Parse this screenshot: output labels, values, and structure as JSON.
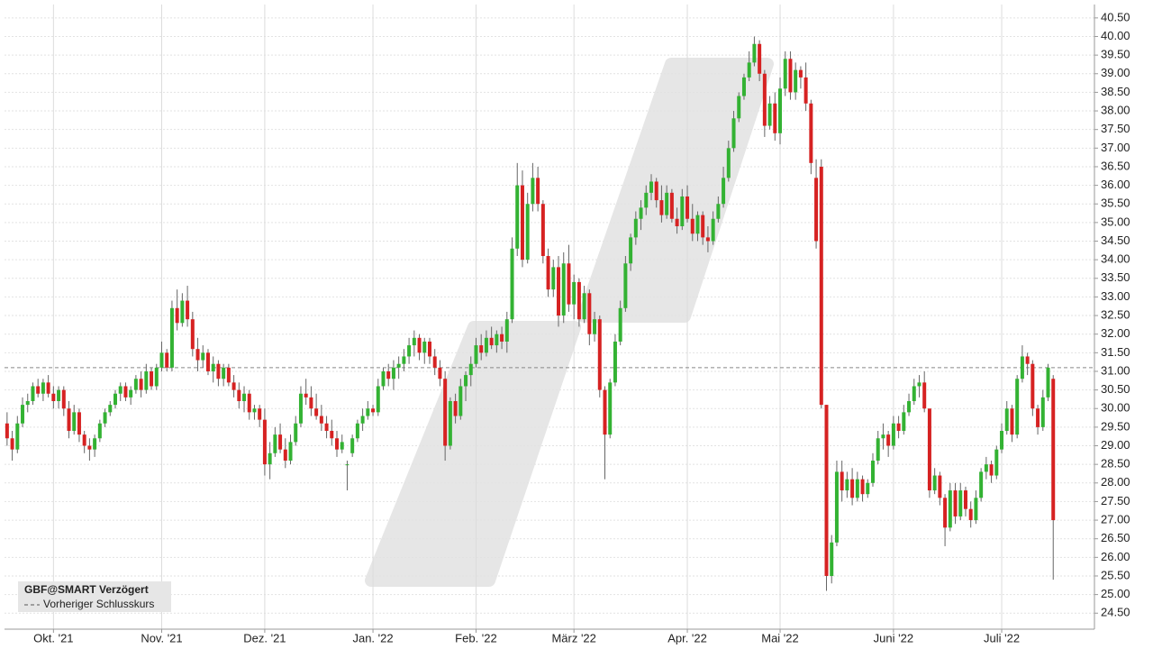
{
  "chart_data": {
    "type": "candlestick",
    "legend_title": "GBF@SMART Verzögert",
    "reference_line": {
      "name": "Vorheriger Schlusskurs",
      "value": 31.1,
      "color": "#888888"
    },
    "up_color": "#33b233",
    "down_color": "#d62222",
    "grid": true,
    "xlim": [
      -0.5,
      211
    ],
    "ylim": [
      24.07,
      40.86
    ],
    "xticks": [
      {
        "value": 9,
        "label": "Okt. '21"
      },
      {
        "value": 30,
        "label": "Nov. '21"
      },
      {
        "value": 50,
        "label": "Dez. '21"
      },
      {
        "value": 71,
        "label": "Jan. '22"
      },
      {
        "value": 91,
        "label": "Feb. '22"
      },
      {
        "value": 110,
        "label": "März '22"
      },
      {
        "value": 132,
        "label": "Apr. '22"
      },
      {
        "value": 150,
        "label": "Mai '22"
      },
      {
        "value": 172,
        "label": "Juni '22"
      },
      {
        "value": 193,
        "label": "Juli '22"
      }
    ],
    "yticks": [
      {
        "value": 24.5,
        "label": "24.50"
      },
      {
        "value": 25,
        "label": "25.00"
      },
      {
        "value": 25.5,
        "label": "25.50"
      },
      {
        "value": 26,
        "label": "26.00"
      },
      {
        "value": 26.5,
        "label": "26.50"
      },
      {
        "value": 27,
        "label": "27.00"
      },
      {
        "value": 27.5,
        "label": "27.50"
      },
      {
        "value": 28,
        "label": "28.00"
      },
      {
        "value": 28.5,
        "label": "28.50"
      },
      {
        "value": 29,
        "label": "29.00"
      },
      {
        "value": 29.5,
        "label": "29.50"
      },
      {
        "value": 30,
        "label": "30.00"
      },
      {
        "value": 30.5,
        "label": "30.50"
      },
      {
        "value": 31,
        "label": "31.00"
      },
      {
        "value": 31.5,
        "label": "31.50"
      },
      {
        "value": 32,
        "label": "32.00"
      },
      {
        "value": 32.5,
        "label": "32.50"
      },
      {
        "value": 33,
        "label": "33.00"
      },
      {
        "value": 33.5,
        "label": "33.50"
      },
      {
        "value": 34,
        "label": "34.00"
      },
      {
        "value": 34.5,
        "label": "34.50"
      },
      {
        "value": 35,
        "label": "35.00"
      },
      {
        "value": 35.5,
        "label": "35.50"
      },
      {
        "value": 36,
        "label": "36.00"
      },
      {
        "value": 36.5,
        "label": "36.50"
      },
      {
        "value": 37,
        "label": "37.00"
      },
      {
        "value": 37.5,
        "label": "37.50"
      },
      {
        "value": 38,
        "label": "38.00"
      },
      {
        "value": 38.5,
        "label": "38.50"
      },
      {
        "value": 39,
        "label": "39.00"
      },
      {
        "value": 39.5,
        "label": "39.50"
      },
      {
        "value": 40,
        "label": "40.00"
      },
      {
        "value": 40.5,
        "label": "40.50"
      }
    ],
    "candles": [
      [
        29.6,
        29.9,
        29.0,
        29.2
      ],
      [
        29.2,
        29.4,
        28.6,
        28.9
      ],
      [
        28.9,
        29.8,
        28.8,
        29.6
      ],
      [
        29.6,
        30.3,
        29.5,
        30.1
      ],
      [
        30.1,
        30.4,
        29.9,
        30.2
      ],
      [
        30.2,
        30.7,
        30.1,
        30.6
      ],
      [
        30.6,
        30.8,
        30.3,
        30.4
      ],
      [
        30.4,
        30.8,
        30.2,
        30.7
      ],
      [
        30.7,
        30.9,
        30.3,
        30.4
      ],
      [
        30.4,
        30.6,
        30.0,
        30.2
      ],
      [
        30.2,
        30.6,
        30.0,
        30.5
      ],
      [
        30.5,
        30.6,
        29.8,
        30.0
      ],
      [
        30.0,
        30.2,
        29.2,
        29.4
      ],
      [
        29.4,
        30.1,
        29.3,
        29.9
      ],
      [
        29.9,
        30.0,
        29.1,
        29.3
      ],
      [
        29.3,
        29.4,
        28.8,
        29.0
      ],
      [
        29.0,
        29.2,
        28.6,
        28.9
      ],
      [
        28.9,
        29.3,
        28.7,
        29.2
      ],
      [
        29.2,
        29.7,
        29.1,
        29.6
      ],
      [
        29.6,
        30.0,
        29.5,
        29.9
      ],
      [
        29.9,
        30.2,
        29.8,
        30.1
      ],
      [
        30.1,
        30.5,
        30.0,
        30.4
      ],
      [
        30.4,
        30.7,
        30.2,
        30.6
      ],
      [
        30.6,
        30.7,
        30.2,
        30.3
      ],
      [
        30.3,
        30.6,
        30.1,
        30.5
      ],
      [
        30.5,
        30.9,
        30.4,
        30.8
      ],
      [
        30.8,
        31.0,
        30.3,
        30.5
      ],
      [
        30.5,
        31.2,
        30.4,
        31.0
      ],
      [
        31.0,
        31.1,
        30.5,
        30.6
      ],
      [
        30.6,
        31.2,
        30.5,
        31.1
      ],
      [
        31.1,
        31.8,
        31.0,
        31.5
      ],
      [
        31.5,
        31.6,
        31.0,
        31.1
      ],
      [
        31.1,
        32.9,
        31.0,
        32.7
      ],
      [
        32.7,
        33.2,
        32.1,
        32.3
      ],
      [
        32.3,
        33.1,
        32.2,
        32.9
      ],
      [
        32.9,
        33.3,
        32.2,
        32.4
      ],
      [
        32.4,
        32.6,
        31.4,
        31.6
      ],
      [
        31.6,
        31.9,
        31.0,
        31.3
      ],
      [
        31.3,
        31.7,
        31.1,
        31.5
      ],
      [
        31.5,
        31.6,
        30.9,
        31.0
      ],
      [
        31.0,
        31.4,
        30.7,
        31.2
      ],
      [
        31.2,
        31.3,
        30.6,
        30.8
      ],
      [
        30.8,
        31.2,
        30.6,
        31.1
      ],
      [
        31.1,
        31.2,
        30.6,
        30.7
      ],
      [
        30.7,
        30.9,
        30.3,
        30.5
      ],
      [
        30.5,
        30.7,
        30.0,
        30.2
      ],
      [
        30.2,
        30.6,
        29.9,
        30.4
      ],
      [
        30.4,
        30.5,
        29.7,
        29.9
      ],
      [
        29.9,
        30.1,
        29.7,
        30.0
      ],
      [
        30.0,
        30.1,
        29.5,
        29.7
      ],
      [
        29.7,
        30.0,
        28.2,
        28.5
      ],
      [
        28.5,
        29.1,
        28.1,
        28.8
      ],
      [
        28.8,
        29.5,
        28.7,
        29.3
      ],
      [
        29.3,
        29.6,
        28.8,
        28.9
      ],
      [
        28.9,
        29.2,
        28.4,
        28.6
      ],
      [
        28.6,
        29.3,
        28.5,
        29.1
      ],
      [
        29.1,
        29.8,
        29.0,
        29.6
      ],
      [
        29.6,
        30.6,
        29.5,
        30.4
      ],
      [
        30.4,
        30.8,
        30.1,
        30.3
      ],
      [
        30.3,
        30.6,
        29.8,
        30.0
      ],
      [
        30.0,
        30.4,
        29.7,
        29.8
      ],
      [
        29.8,
        30.1,
        29.4,
        29.6
      ],
      [
        29.6,
        29.8,
        29.2,
        29.4
      ],
      [
        29.4,
        29.7,
        29.0,
        29.2
      ],
      [
        29.2,
        29.4,
        28.7,
        28.9
      ],
      [
        28.9,
        29.3,
        28.8,
        29.1
      ],
      [
        28.5,
        28.6,
        27.8,
        28.5
      ],
      [
        28.8,
        29.3,
        28.7,
        29.2
      ],
      [
        29.2,
        29.7,
        29.1,
        29.6
      ],
      [
        29.6,
        30.0,
        29.4,
        29.8
      ],
      [
        29.8,
        30.2,
        29.7,
        30.0
      ],
      [
        30.0,
        30.1,
        29.8,
        29.9
      ],
      [
        29.9,
        30.8,
        29.8,
        30.6
      ],
      [
        30.6,
        31.1,
        30.5,
        31.0
      ],
      [
        31.0,
        31.2,
        30.6,
        30.8
      ],
      [
        30.8,
        31.3,
        30.5,
        31.1
      ],
      [
        31.1,
        31.4,
        30.8,
        31.2
      ],
      [
        31.2,
        31.6,
        31.0,
        31.4
      ],
      [
        31.4,
        31.9,
        31.2,
        31.7
      ],
      [
        31.7,
        32.1,
        31.4,
        31.9
      ],
      [
        31.9,
        32.0,
        31.3,
        31.5
      ],
      [
        31.5,
        31.9,
        31.2,
        31.8
      ],
      [
        31.8,
        31.9,
        31.2,
        31.4
      ],
      [
        31.4,
        31.6,
        30.9,
        31.1
      ],
      [
        31.1,
        31.3,
        30.6,
        30.8
      ],
      [
        30.8,
        31.0,
        28.6,
        29.0
      ],
      [
        29.0,
        30.3,
        28.9,
        30.2
      ],
      [
        30.2,
        30.4,
        29.6,
        29.8
      ],
      [
        29.8,
        30.8,
        29.7,
        30.6
      ],
      [
        30.6,
        31.0,
        30.2,
        30.9
      ],
      [
        30.9,
        31.4,
        30.6,
        31.2
      ],
      [
        31.2,
        31.9,
        31.1,
        31.7
      ],
      [
        31.7,
        32.0,
        31.3,
        31.5
      ],
      [
        31.5,
        32.1,
        31.4,
        31.9
      ],
      [
        31.9,
        32.2,
        31.6,
        31.7
      ],
      [
        31.7,
        32.1,
        31.5,
        32.0
      ],
      [
        32.0,
        32.2,
        31.6,
        31.8
      ],
      [
        31.8,
        32.6,
        31.5,
        32.4
      ],
      [
        32.4,
        34.6,
        32.3,
        34.3
      ],
      [
        34.3,
        36.6,
        34.1,
        36.0
      ],
      [
        36.0,
        36.4,
        33.8,
        34.0
      ],
      [
        34.0,
        35.8,
        33.9,
        35.5
      ],
      [
        35.5,
        36.6,
        35.3,
        36.2
      ],
      [
        36.2,
        36.5,
        35.3,
        35.5
      ],
      [
        35.5,
        35.6,
        33.9,
        34.1
      ],
      [
        34.1,
        34.3,
        33.0,
        33.2
      ],
      [
        33.2,
        34.0,
        33.0,
        33.8
      ],
      [
        33.8,
        34.1,
        32.2,
        32.5
      ],
      [
        32.5,
        34.2,
        32.3,
        33.9
      ],
      [
        33.9,
        34.4,
        32.6,
        32.8
      ],
      [
        32.8,
        33.6,
        32.4,
        33.4
      ],
      [
        33.4,
        33.5,
        32.2,
        32.4
      ],
      [
        32.4,
        33.3,
        32.3,
        33.1
      ],
      [
        33.1,
        33.2,
        31.7,
        32.0
      ],
      [
        32.0,
        32.6,
        31.8,
        32.4
      ],
      [
        32.4,
        32.5,
        30.3,
        30.5
      ],
      [
        30.5,
        30.6,
        28.1,
        29.3
      ],
      [
        29.3,
        30.8,
        29.2,
        30.7
      ],
      [
        30.7,
        32.0,
        30.6,
        31.8
      ],
      [
        31.8,
        32.9,
        31.7,
        32.7
      ],
      [
        32.7,
        34.1,
        32.6,
        33.9
      ],
      [
        33.9,
        34.7,
        33.7,
        34.6
      ],
      [
        34.6,
        35.3,
        34.4,
        35.1
      ],
      [
        35.1,
        35.6,
        34.8,
        35.4
      ],
      [
        35.4,
        36.0,
        35.2,
        35.8
      ],
      [
        35.8,
        36.3,
        35.6,
        36.1
      ],
      [
        36.1,
        36.2,
        35.4,
        35.6
      ],
      [
        35.6,
        36.0,
        35.0,
        35.2
      ],
      [
        35.2,
        36.0,
        35.1,
        35.8
      ],
      [
        35.8,
        35.9,
        35.0,
        35.1
      ],
      [
        35.1,
        35.4,
        34.7,
        34.9
      ],
      [
        34.9,
        35.9,
        34.8,
        35.7
      ],
      [
        35.7,
        36.0,
        35.0,
        35.1
      ],
      [
        35.1,
        35.5,
        34.5,
        34.7
      ],
      [
        34.7,
        35.3,
        34.5,
        35.2
      ],
      [
        35.2,
        35.3,
        34.4,
        34.6
      ],
      [
        34.6,
        34.9,
        34.2,
        34.5
      ],
      [
        34.5,
        35.3,
        34.4,
        35.1
      ],
      [
        35.1,
        35.7,
        35.0,
        35.5
      ],
      [
        35.5,
        36.5,
        35.4,
        36.2
      ],
      [
        36.2,
        37.2,
        36.1,
        37.0
      ],
      [
        37.0,
        38.0,
        36.9,
        37.8
      ],
      [
        37.8,
        38.5,
        37.7,
        38.4
      ],
      [
        38.4,
        39.0,
        38.3,
        38.9
      ],
      [
        38.9,
        39.6,
        38.8,
        39.3
      ],
      [
        39.3,
        40.0,
        39.2,
        39.8
      ],
      [
        39.8,
        39.9,
        38.8,
        39.0
      ],
      [
        39.0,
        39.1,
        37.3,
        37.6
      ],
      [
        37.6,
        38.4,
        37.5,
        38.2
      ],
      [
        38.2,
        38.5,
        37.2,
        37.4
      ],
      [
        37.4,
        38.9,
        37.1,
        38.6
      ],
      [
        38.6,
        39.6,
        38.4,
        39.4
      ],
      [
        39.4,
        39.6,
        38.3,
        38.5
      ],
      [
        38.5,
        39.3,
        38.3,
        39.1
      ],
      [
        39.1,
        39.2,
        38.6,
        38.9
      ],
      [
        38.9,
        39.3,
        38.0,
        38.2
      ],
      [
        38.2,
        38.3,
        36.3,
        36.6
      ],
      [
        36.2,
        36.7,
        34.3,
        34.5
      ],
      [
        36.5,
        36.7,
        30.0,
        30.1
      ],
      [
        30.1,
        30.1,
        25.1,
        25.5
      ],
      [
        25.5,
        26.6,
        25.3,
        26.4
      ],
      [
        26.4,
        28.6,
        26.3,
        28.3
      ],
      [
        28.3,
        28.6,
        27.5,
        27.8
      ],
      [
        27.8,
        28.3,
        27.6,
        28.1
      ],
      [
        28.1,
        28.4,
        27.4,
        27.6
      ],
      [
        27.6,
        28.3,
        27.5,
        28.1
      ],
      [
        28.1,
        28.2,
        27.5,
        27.7
      ],
      [
        27.7,
        28.1,
        27.6,
        28.0
      ],
      [
        28.0,
        28.8,
        27.9,
        28.6
      ],
      [
        28.6,
        29.4,
        28.5,
        29.2
      ],
      [
        29.2,
        29.6,
        28.9,
        29.3
      ],
      [
        29.3,
        29.4,
        28.7,
        29.0
      ],
      [
        29.0,
        29.8,
        28.9,
        29.6
      ],
      [
        29.6,
        29.8,
        29.2,
        29.4
      ],
      [
        29.4,
        30.1,
        29.3,
        29.9
      ],
      [
        29.9,
        30.4,
        29.8,
        30.2
      ],
      [
        30.2,
        30.8,
        30.1,
        30.6
      ],
      [
        30.6,
        30.9,
        30.3,
        30.7
      ],
      [
        30.7,
        31.0,
        29.9,
        30.0
      ],
      [
        30.0,
        30.0,
        27.6,
        27.8
      ],
      [
        27.8,
        28.4,
        27.7,
        28.2
      ],
      [
        28.2,
        28.3,
        27.4,
        27.6
      ],
      [
        27.6,
        27.7,
        26.3,
        26.8
      ],
      [
        26.8,
        28.0,
        26.7,
        27.8
      ],
      [
        27.8,
        28.0,
        26.9,
        27.1
      ],
      [
        27.1,
        28.0,
        27.0,
        27.8
      ],
      [
        27.8,
        27.9,
        27.1,
        27.3
      ],
      [
        27.3,
        27.5,
        26.8,
        27.0
      ],
      [
        27.0,
        27.8,
        26.9,
        27.6
      ],
      [
        27.6,
        28.4,
        27.5,
        28.3
      ],
      [
        28.3,
        28.7,
        28.1,
        28.5
      ],
      [
        28.5,
        28.6,
        28.0,
        28.2
      ],
      [
        28.2,
        29.0,
        28.1,
        28.9
      ],
      [
        28.9,
        29.6,
        28.8,
        29.4
      ],
      [
        29.4,
        30.2,
        29.3,
        30.0
      ],
      [
        30.0,
        30.1,
        29.1,
        29.3
      ],
      [
        29.3,
        30.9,
        29.2,
        30.8
      ],
      [
        30.8,
        31.7,
        30.7,
        31.4
      ],
      [
        31.4,
        31.5,
        30.9,
        31.2
      ],
      [
        31.2,
        31.3,
        29.8,
        30.0
      ],
      [
        30.0,
        30.1,
        29.3,
        29.5
      ],
      [
        29.5,
        30.5,
        29.4,
        30.3
      ],
      [
        30.3,
        31.2,
        30.2,
        31.1
      ],
      [
        30.8,
        30.9,
        25.4,
        27.0
      ]
    ]
  }
}
